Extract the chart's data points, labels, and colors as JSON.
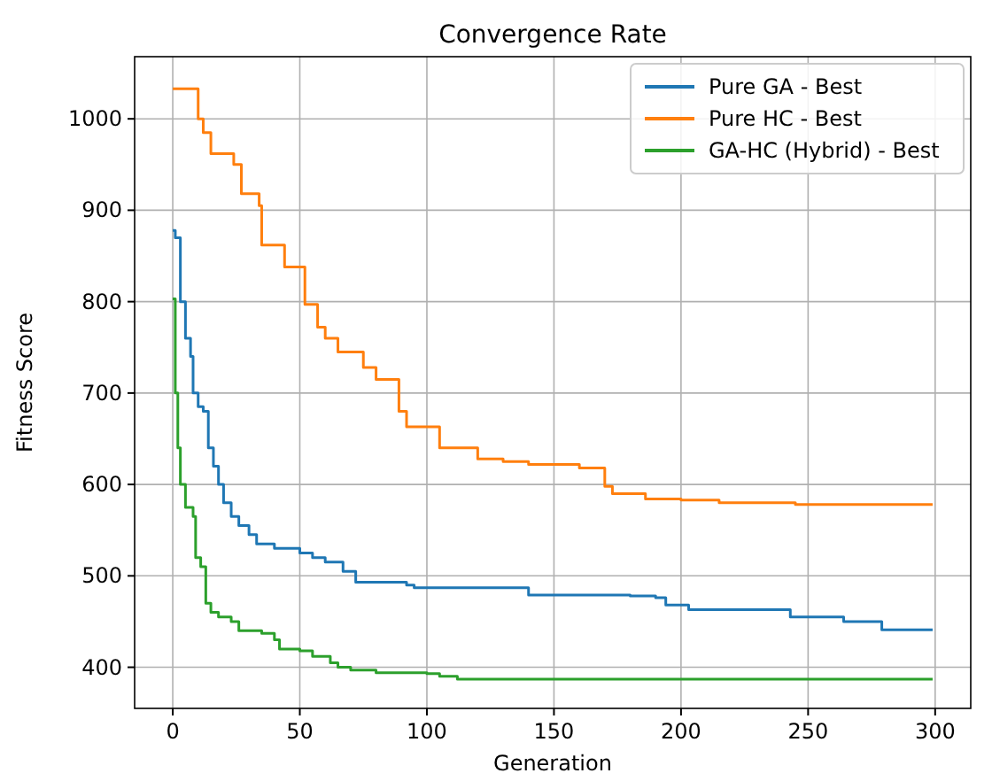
{
  "chart_data": {
    "type": "step",
    "title": "Convergence Rate",
    "xlabel": "Generation",
    "ylabel": "Fitness Score",
    "xlim": [
      -15,
      314
    ],
    "xticks": [
      0,
      50,
      100,
      150,
      200,
      250,
      300
    ],
    "ylim": [
      355,
      1068
    ],
    "yticks": [
      400,
      500,
      600,
      700,
      800,
      900,
      1000
    ],
    "grid": true,
    "legend": "top right",
    "series": [
      {
        "name": "Pure GA - Best",
        "color": "#1f77b4",
        "x": [
          0,
          1,
          3,
          5,
          7,
          8,
          10,
          12,
          14,
          16,
          18,
          20,
          23,
          26,
          30,
          33,
          40,
          50,
          55,
          60,
          67,
          72,
          92,
          95,
          140,
          180,
          190,
          194,
          203,
          243,
          264,
          279,
          299
        ],
        "values": [
          878,
          870,
          800,
          760,
          740,
          700,
          685,
          680,
          640,
          620,
          600,
          580,
          565,
          555,
          545,
          535,
          530,
          525,
          520,
          515,
          505,
          493,
          490,
          487,
          479,
          478,
          476,
          468,
          463,
          455,
          450,
          441,
          441
        ]
      },
      {
        "name": "Pure HC - Best",
        "color": "#ff7f0e",
        "x": [
          0,
          10,
          12,
          15,
          24,
          27,
          34,
          35,
          44,
          52,
          57,
          60,
          65,
          75,
          80,
          89,
          92,
          105,
          120,
          130,
          140,
          160,
          170,
          173,
          186,
          200,
          215,
          245,
          299
        ],
        "values": [
          1033,
          1000,
          985,
          962,
          950,
          918,
          905,
          862,
          838,
          797,
          772,
          760,
          745,
          728,
          715,
          680,
          663,
          640,
          628,
          625,
          622,
          618,
          598,
          590,
          584,
          583,
          580,
          578,
          578
        ]
      },
      {
        "name": "GA-HC (Hybrid) - Best",
        "color": "#2ca02c",
        "x": [
          0,
          1,
          2,
          3,
          5,
          8,
          9,
          11,
          13,
          15,
          18,
          23,
          26,
          35,
          40,
          42,
          50,
          55,
          62,
          65,
          70,
          80,
          100,
          105,
          112,
          299
        ],
        "values": [
          803,
          700,
          640,
          600,
          575,
          565,
          520,
          510,
          470,
          460,
          455,
          450,
          440,
          437,
          430,
          420,
          418,
          412,
          405,
          400,
          397,
          394,
          393,
          390,
          387,
          387
        ]
      }
    ]
  }
}
